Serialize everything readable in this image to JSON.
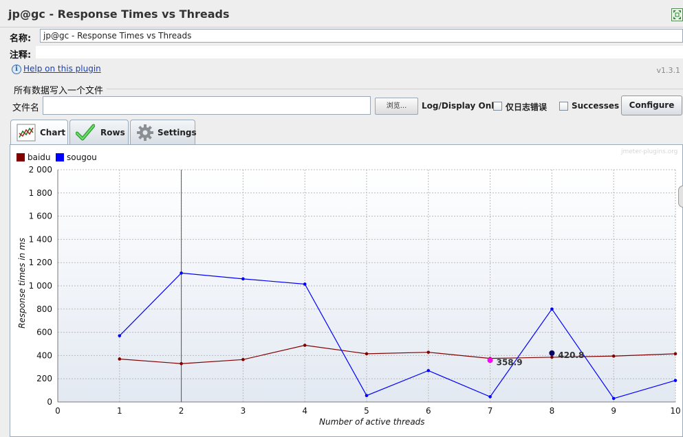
{
  "window": {
    "title": "jp@gc - Response Times vs Threads"
  },
  "form": {
    "name_label": "名称:",
    "name_value": "jp@gc - Response Times vs Threads",
    "comment_label": "注释:",
    "comment_value": ""
  },
  "help": {
    "link_text": "Help on this plugin",
    "version": "v1.3.1"
  },
  "file_section": {
    "group_title": "所有数据写入一个文件",
    "file_label": "文件名",
    "file_value": "",
    "browse_label": "浏览...",
    "log_label": "Log/Display Only:",
    "errors_label": "仅日志错误",
    "errors_checked": false,
    "successes_label": "Successes",
    "successes_checked": false,
    "configure_label": "Configure"
  },
  "tabs": [
    {
      "label": "Chart",
      "icon": "chart-icon",
      "active": true
    },
    {
      "label": "Rows",
      "icon": "checkmark-icon",
      "active": false
    },
    {
      "label": "Settings",
      "icon": "gear-icon",
      "active": false
    }
  ],
  "chart_data": {
    "type": "line",
    "watermark": "jmeter-plugins.org",
    "xlabel": "Number of active threads",
    "ylabel": "Response times in ms",
    "xlim": [
      0,
      10
    ],
    "ylim": [
      0,
      2000
    ],
    "x_ticks": [
      0,
      1,
      2,
      3,
      4,
      5,
      6,
      7,
      8,
      9,
      10
    ],
    "y_ticks": [
      0,
      200,
      400,
      600,
      800,
      1000,
      1200,
      1400,
      1600,
      1800,
      2000
    ],
    "y_tick_labels": [
      "0",
      "200",
      "400",
      "600",
      "800",
      "1 000",
      "1 200",
      "1 400",
      "1 600",
      "1 800",
      "2 000"
    ],
    "grid": true,
    "legend_position": "top-left",
    "series": [
      {
        "name": "baidu",
        "color": "#800000",
        "x": [
          1,
          2,
          3,
          4,
          5,
          6,
          7,
          8,
          9,
          10
        ],
        "y": [
          370,
          330,
          365,
          488,
          415,
          428,
          375,
          385,
          395,
          415
        ]
      },
      {
        "name": "sougou",
        "color": "#0000ff",
        "x": [
          1,
          2,
          3,
          4,
          5,
          6,
          7,
          8,
          9,
          10
        ],
        "y": [
          570,
          1110,
          1060,
          1015,
          55,
          270,
          45,
          800,
          30,
          185
        ]
      }
    ],
    "crosshair_x": 2,
    "annotations": [
      {
        "x": 7,
        "y": 358.9,
        "label": "358.9",
        "color": "#ff00ff"
      },
      {
        "x": 8,
        "y": 420.8,
        "label": "420.8",
        "color": "#000066"
      }
    ]
  }
}
